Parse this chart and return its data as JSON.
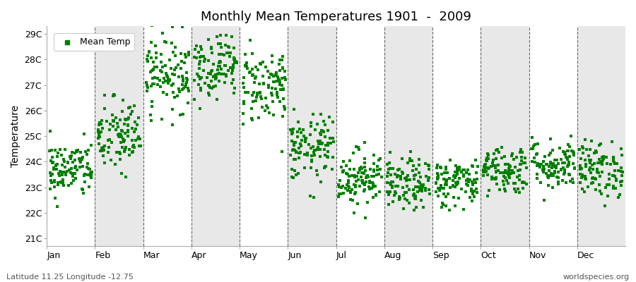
{
  "title": "Monthly Mean Temperatures 1901  -  2009",
  "ylabel": "Temperature",
  "xlabel_labels": [
    "Jan",
    "Feb",
    "Mar",
    "Apr",
    "May",
    "Jun",
    "Jul",
    "Aug",
    "Sep",
    "Oct",
    "Nov",
    "Dec"
  ],
  "ytick_labels": [
    "21C",
    "22C",
    "23C",
    "24C",
    "25C",
    "26C",
    "27C",
    "28C",
    "29C"
  ],
  "ytick_values": [
    21,
    22,
    23,
    24,
    25,
    26,
    27,
    28,
    29
  ],
  "ylim": [
    20.7,
    29.3
  ],
  "marker_color": "#008000",
  "marker": "s",
  "marker_size": 2.5,
  "footer_left": "Latitude 11.25 Longitude -12.75",
  "footer_right": "worldspecies.org",
  "legend_label": "Mean Temp",
  "plot_bg_white": "#ffffff",
  "plot_bg_gray": "#e8e8e8",
  "fig_bg_color": "#ffffff",
  "monthly_means": [
    23.7,
    25.0,
    27.5,
    27.8,
    27.0,
    24.5,
    23.4,
    23.1,
    23.2,
    23.7,
    23.9,
    23.7
  ],
  "monthly_stds": [
    0.55,
    0.75,
    0.75,
    0.65,
    0.75,
    0.65,
    0.55,
    0.5,
    0.48,
    0.48,
    0.5,
    0.55
  ],
  "n_years": 109,
  "seed": 42,
  "xlim_start": 0,
  "xlim_end": 13.0
}
